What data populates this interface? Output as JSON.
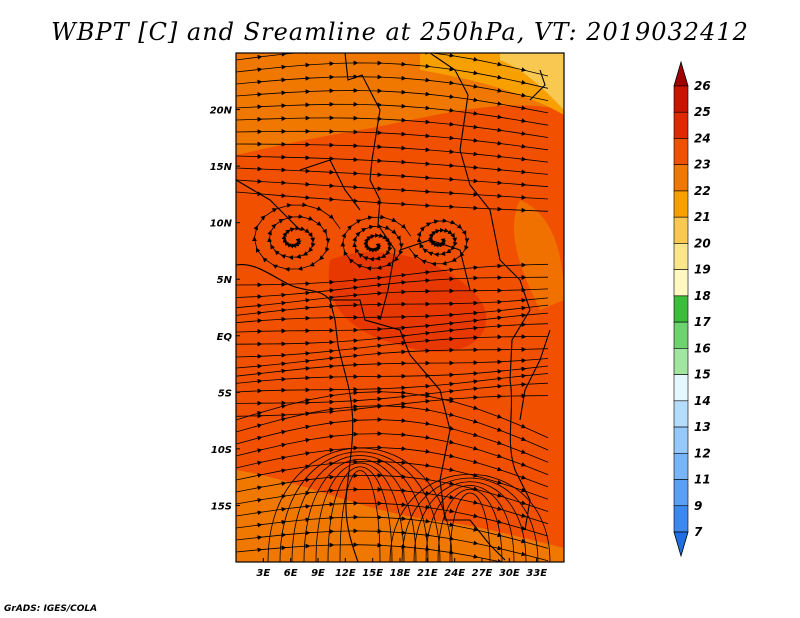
{
  "title": "WBPT [C] and Sreamline at 250hPa, VT: 2019032412",
  "credit": "GrADS: IGES/COLA",
  "map": {
    "lon_range": [
      0,
      36
    ],
    "lat_range": [
      -20,
      25
    ],
    "lon_ticks": [
      {
        "value": 3,
        "label": "3E"
      },
      {
        "value": 6,
        "label": "6E"
      },
      {
        "value": 9,
        "label": "9E"
      },
      {
        "value": 12,
        "label": "12E"
      },
      {
        "value": 15,
        "label": "15E"
      },
      {
        "value": 18,
        "label": "18E"
      },
      {
        "value": 21,
        "label": "21E"
      },
      {
        "value": 24,
        "label": "24E"
      },
      {
        "value": 27,
        "label": "27E"
      },
      {
        "value": 30,
        "label": "30E"
      },
      {
        "value": 33,
        "label": "33E"
      }
    ],
    "lat_ticks": [
      {
        "value": 20,
        "label": "20N"
      },
      {
        "value": 15,
        "label": "15N"
      },
      {
        "value": 10,
        "label": "10N"
      },
      {
        "value": 5,
        "label": "5N"
      },
      {
        "value": 0,
        "label": "EQ"
      },
      {
        "value": -5,
        "label": "5S"
      },
      {
        "value": -10,
        "label": "10S"
      },
      {
        "value": -15,
        "label": "15S"
      }
    ]
  },
  "colorbar": {
    "labels": [
      "7",
      "9",
      "11",
      "12",
      "13",
      "14",
      "15",
      "16",
      "17",
      "18",
      "19",
      "20",
      "21",
      "22",
      "23",
      "24",
      "25",
      "26"
    ],
    "colors": [
      "#1e6fe0",
      "#3c87f0",
      "#5a9ff5",
      "#78b4f8",
      "#96c8fa",
      "#b4dcfc",
      "#e6f8ff",
      "#a0e6a0",
      "#6ed26e",
      "#3cbe3c",
      "#fff8c0",
      "#fce68c",
      "#f8c850",
      "#f8a000",
      "#f07800",
      "#f05000",
      "#e02800",
      "#c81400",
      "#a00000"
    ]
  }
}
